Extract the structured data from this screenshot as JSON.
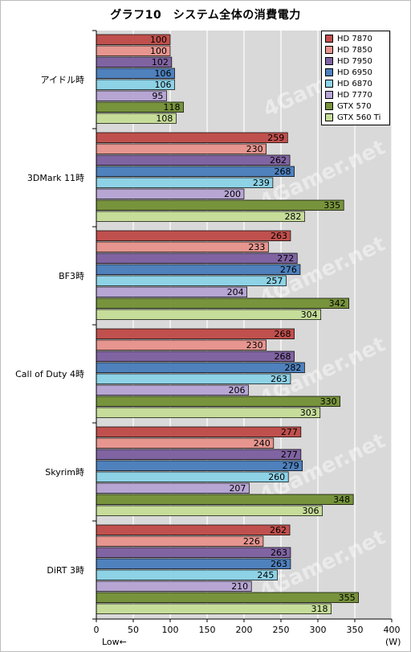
{
  "chart_data": {
    "type": "bar",
    "orientation": "horizontal",
    "title": "グラフ10　システム全体の消費電力",
    "categories": [
      "アイドル時",
      "3DMark 11時",
      "BF3時",
      "Call of Duty 4時",
      "Skyrim時",
      "DiRT 3時"
    ],
    "series": [
      {
        "name": "HD 7870",
        "color": "#c0504d",
        "values": [
          100,
          259,
          263,
          268,
          277,
          262
        ]
      },
      {
        "name": "HD 7850",
        "color": "#e6958f",
        "values": [
          100,
          230,
          233,
          230,
          240,
          226
        ]
      },
      {
        "name": "HD 7950",
        "color": "#8064a2",
        "values": [
          102,
          262,
          272,
          268,
          277,
          263
        ]
      },
      {
        "name": "HD 6950",
        "color": "#4f81bd",
        "values": [
          106,
          268,
          276,
          282,
          279,
          263
        ]
      },
      {
        "name": "HD 6870",
        "color": "#8ed2e6",
        "values": [
          106,
          239,
          257,
          263,
          260,
          245
        ]
      },
      {
        "name": "HD 7770",
        "color": "#b7a5d3",
        "values": [
          95,
          200,
          204,
          206,
          207,
          210
        ]
      },
      {
        "name": "GTX 570",
        "color": "#77933c",
        "values": [
          118,
          335,
          342,
          330,
          348,
          355
        ]
      },
      {
        "name": "GTX 560 Ti",
        "color": "#c6dd9a",
        "values": [
          108,
          282,
          304,
          303,
          306,
          318
        ]
      }
    ],
    "xlim": [
      0,
      400
    ],
    "xticks": [
      0,
      50,
      100,
      150,
      200,
      250,
      300,
      350,
      400
    ],
    "xlabel_left": "Low←",
    "xlabel_right": "(W)",
    "grid": true,
    "legend_position": "top-right",
    "watermark": "4Gamer.net"
  }
}
